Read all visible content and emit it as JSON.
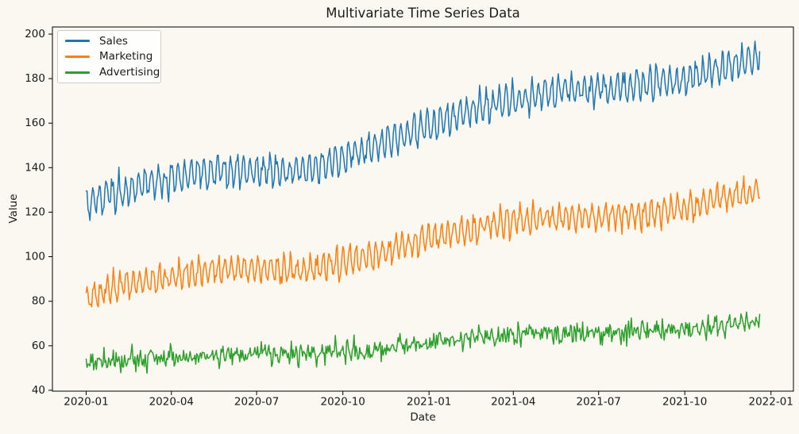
{
  "colors": {
    "background": "#faf8f0",
    "spine": "#000000",
    "text": "#1a1a1a",
    "legend_border": "#cccccc",
    "sales": "#1f77b4",
    "marketing": "#ff7f0e",
    "advertising": "#2ca02c"
  },
  "chart_data": {
    "type": "line",
    "title": "Multivariate Time Series Data",
    "xlabel": "Date",
    "ylabel": "Value",
    "grid": false,
    "legend_position": "upper left",
    "x_tick_labels": [
      "2020-01",
      "2020-04",
      "2020-07",
      "2020-10",
      "2021-01",
      "2021-04",
      "2021-07",
      "2021-10",
      "2022-01"
    ],
    "x_ticks": [
      {
        "day": 0,
        "label": "2020-01"
      },
      {
        "day": 91,
        "label": "2020-04"
      },
      {
        "day": 182,
        "label": "2020-07"
      },
      {
        "day": 274,
        "label": "2020-10"
      },
      {
        "day": 366,
        "label": "2021-01"
      },
      {
        "day": 456,
        "label": "2021-04"
      },
      {
        "day": 547,
        "label": "2021-07"
      },
      {
        "day": 639,
        "label": "2021-10"
      },
      {
        "day": 731,
        "label": "2022-01"
      }
    ],
    "y_ticks": [
      40,
      60,
      80,
      100,
      120,
      140,
      160,
      180,
      200
    ],
    "xlim_days": [
      -36,
      755
    ],
    "ylim": [
      39.6,
      203.2
    ],
    "days_total": 719,
    "anchor_days": [
      0,
      30,
      61,
      91,
      122,
      152,
      183,
      213,
      244,
      274,
      305,
      335,
      366,
      397,
      425,
      456,
      486,
      517,
      547,
      578,
      608,
      639,
      669,
      700,
      719
    ],
    "series": [
      {
        "name": "Sales",
        "color": "#1f77b4",
        "trend": [
          124,
          128,
          132,
          135,
          137,
          138,
          138,
          138,
          140,
          144,
          149,
          154,
          159,
          164,
          167,
          170,
          173,
          175,
          175,
          176,
          178,
          180,
          184,
          187,
          189
        ],
        "weekly_amplitude": 6.0,
        "weekly_phase": 1.5,
        "noise_sigma": 1.8,
        "seed": 11
      },
      {
        "name": "Marketing",
        "color": "#ff7f0e",
        "trend": [
          82,
          86,
          89,
          91,
          93,
          94,
          94,
          93.5,
          95,
          98,
          101,
          104,
          108,
          111,
          114,
          116,
          117,
          117.5,
          118,
          119,
          120,
          122,
          125,
          128,
          131
        ],
        "weekly_amplitude": 5.0,
        "weekly_phase": 0.5,
        "noise_sigma": 1.7,
        "seed": 23
      },
      {
        "name": "Advertising",
        "color": "#2ca02c",
        "trend": [
          52,
          53,
          54,
          54.5,
          55,
          55.5,
          56,
          56,
          56.5,
          57,
          58,
          60,
          61.5,
          63,
          64,
          65,
          65.5,
          66,
          66,
          66.5,
          67,
          67.5,
          69,
          70,
          71
        ],
        "weekly_amplitude": 1.3,
        "weekly_phase": 2.5,
        "noise_sigma": 2.2,
        "seed": 37
      }
    ]
  }
}
